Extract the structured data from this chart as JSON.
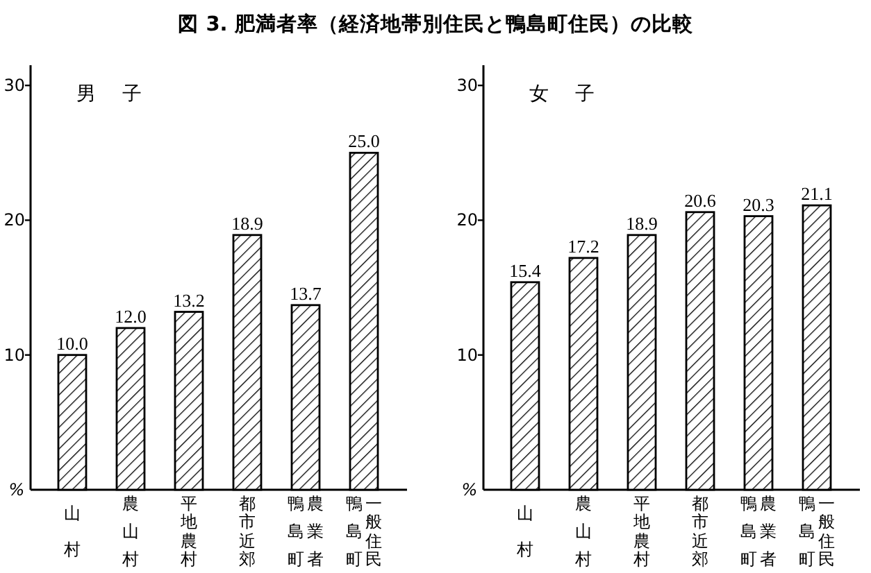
{
  "chart_data": [
    {
      "type": "bar",
      "title": "図 3. 肥満者率（経済地帯別住民と鴨島町住民）の比較",
      "subtitle": "男子",
      "ylabel": "%",
      "categories": [
        "山村",
        "農山村",
        "平地農村",
        "都市近郊",
        "鴨島町農業者",
        "鴨島町一般住民"
      ],
      "values": [
        10.0,
        12.0,
        13.2,
        18.9,
        13.7,
        25.0
      ],
      "value_labels": [
        "10.0",
        "12.0",
        "13.2",
        "18.9",
        "13.7",
        "25.0"
      ],
      "color": "#000000",
      "ylim": [
        0,
        31.5
      ],
      "yticks": [
        10,
        20,
        30
      ]
    },
    {
      "type": "bar",
      "subtitle": "女子",
      "ylabel": "%",
      "categories": [
        "山村",
        "農山村",
        "平地農村",
        "都市近郊",
        "鴨島町農業者",
        "鴨島町一般住民"
      ],
      "values": [
        15.4,
        17.2,
        18.9,
        20.6,
        20.3,
        21.1
      ],
      "value_labels": [
        "15.4",
        "17.2",
        "18.9",
        "20.6",
        "20.3",
        "21.1"
      ],
      "color": "#000000",
      "ylim": [
        0,
        31.5
      ],
      "yticks": [
        10,
        20,
        30
      ]
    }
  ]
}
